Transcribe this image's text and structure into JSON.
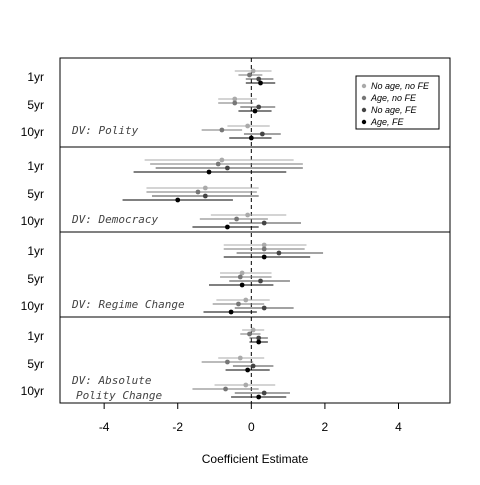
{
  "chart_data": {
    "type": "scatter",
    "subtype": "coefficient-plot-with-confidence-intervals",
    "title": "",
    "xlabel": "Coefficient Estimate",
    "ylabel": "",
    "xlim": [
      -5.2,
      5.4
    ],
    "x_ticks": [
      "-4",
      "-2",
      "0",
      "2",
      "4"
    ],
    "x_tick_values": [
      -4,
      -2,
      0,
      2,
      4
    ],
    "reference_line": {
      "x": 0,
      "style": "dashed"
    },
    "grid": false,
    "legend_position": "top-right",
    "series": [
      {
        "name": "No age, no FE",
        "color": "#aaaaaa"
      },
      {
        "name": "Age, no FE",
        "color": "#777777"
      },
      {
        "name": "No age, FE",
        "color": "#444444"
      },
      {
        "name": "Age, FE",
        "color": "#000000"
      }
    ],
    "horizons": [
      "1yr",
      "5yr",
      "10yr"
    ],
    "panels": [
      {
        "label": "DV: Polity",
        "rows": [
          {
            "horizon": "1yr",
            "points": [
              {
                "est": 0.05,
                "lo": -0.45,
                "hi": 0.55
              },
              {
                "est": -0.05,
                "lo": -0.35,
                "hi": 0.3
              },
              {
                "est": 0.2,
                "lo": -0.15,
                "hi": 0.6
              },
              {
                "est": 0.25,
                "lo": -0.15,
                "hi": 0.65
              }
            ]
          },
          {
            "horizon": "5yr",
            "points": [
              {
                "est": -0.45,
                "lo": -0.9,
                "hi": 0.15
              },
              {
                "est": -0.45,
                "lo": -0.9,
                "hi": 0.05
              },
              {
                "est": 0.2,
                "lo": -0.3,
                "hi": 0.65
              },
              {
                "est": 0.1,
                "lo": -0.35,
                "hi": 0.55
              }
            ]
          },
          {
            "horizon": "10yr",
            "points": [
              {
                "est": -0.1,
                "lo": -0.65,
                "hi": 0.5
              },
              {
                "est": -0.8,
                "lo": -1.35,
                "hi": -0.25
              },
              {
                "est": 0.3,
                "lo": -0.2,
                "hi": 0.8
              },
              {
                "est": 0.0,
                "lo": -0.6,
                "hi": 0.55
              }
            ]
          }
        ]
      },
      {
        "label": "DV: Democracy",
        "rows": [
          {
            "horizon": "1yr",
            "points": [
              {
                "est": -0.8,
                "lo": -2.9,
                "hi": 1.15
              },
              {
                "est": -0.9,
                "lo": -2.75,
                "hi": 1.4
              },
              {
                "est": -0.65,
                "lo": -2.6,
                "hi": 1.4
              },
              {
                "est": -1.15,
                "lo": -3.2,
                "hi": 0.95
              }
            ]
          },
          {
            "horizon": "5yr",
            "points": [
              {
                "est": -1.25,
                "lo": -2.85,
                "hi": 0.2
              },
              {
                "est": -1.45,
                "lo": -2.85,
                "hi": 0.15
              },
              {
                "est": -1.25,
                "lo": -2.7,
                "hi": 0.2
              },
              {
                "est": -2.0,
                "lo": -3.5,
                "hi": -0.5
              }
            ]
          },
          {
            "horizon": "10yr",
            "points": [
              {
                "est": -0.1,
                "lo": -1.1,
                "hi": 0.95
              },
              {
                "est": -0.4,
                "lo": -1.4,
                "hi": 0.45
              },
              {
                "est": 0.35,
                "lo": -0.6,
                "hi": 1.35
              },
              {
                "est": -0.65,
                "lo": -1.6,
                "hi": 0.2
              }
            ]
          }
        ]
      },
      {
        "label": "DV: Regime Change",
        "rows": [
          {
            "horizon": "1yr",
            "points": [
              {
                "est": 0.35,
                "lo": -0.75,
                "hi": 1.5
              },
              {
                "est": 0.35,
                "lo": -0.75,
                "hi": 1.45
              },
              {
                "est": 0.75,
                "lo": -0.4,
                "hi": 1.95
              },
              {
                "est": 0.35,
                "lo": -0.75,
                "hi": 1.6
              }
            ]
          },
          {
            "horizon": "5yr",
            "points": [
              {
                "est": -0.25,
                "lo": -0.85,
                "hi": 0.55
              },
              {
                "est": -0.3,
                "lo": -0.85,
                "hi": 0.55
              },
              {
                "est": 0.25,
                "lo": -0.6,
                "hi": 1.05
              },
              {
                "est": -0.25,
                "lo": -1.15,
                "hi": 0.6
              }
            ]
          },
          {
            "horizon": "10yr",
            "points": [
              {
                "est": -0.15,
                "lo": -0.95,
                "hi": 0.5
              },
              {
                "est": -0.35,
                "lo": -1.05,
                "hi": 0.35
              },
              {
                "est": 0.35,
                "lo": -0.45,
                "hi": 1.15
              },
              {
                "est": -0.55,
                "lo": -1.3,
                "hi": 0.15
              }
            ]
          }
        ]
      },
      {
        "label": "DV: Absolute Polity Change",
        "label_lines": [
          "DV: Absolute",
          "Polity Change"
        ],
        "rows": [
          {
            "horizon": "1yr",
            "points": [
              {
                "est": 0.05,
                "lo": -0.25,
                "hi": 0.35
              },
              {
                "est": -0.05,
                "lo": -0.3,
                "hi": 0.25
              },
              {
                "est": 0.2,
                "lo": -0.05,
                "hi": 0.45
              },
              {
                "est": 0.2,
                "lo": -0.05,
                "hi": 0.45
              }
            ]
          },
          {
            "horizon": "5yr",
            "points": [
              {
                "est": -0.3,
                "lo": -0.9,
                "hi": 0.35
              },
              {
                "est": -0.65,
                "lo": -1.35,
                "hi": 0.05
              },
              {
                "est": 0.05,
                "lo": -0.5,
                "hi": 0.6
              },
              {
                "est": -0.1,
                "lo": -0.7,
                "hi": 0.5
              }
            ]
          },
          {
            "horizon": "10yr",
            "points": [
              {
                "est": -0.15,
                "lo": -1.0,
                "hi": 0.65
              },
              {
                "est": -0.7,
                "lo": -1.6,
                "hi": 0.2
              },
              {
                "est": 0.35,
                "lo": -0.45,
                "hi": 1.05
              },
              {
                "est": 0.2,
                "lo": -0.55,
                "hi": 0.95
              }
            ]
          }
        ]
      }
    ]
  }
}
